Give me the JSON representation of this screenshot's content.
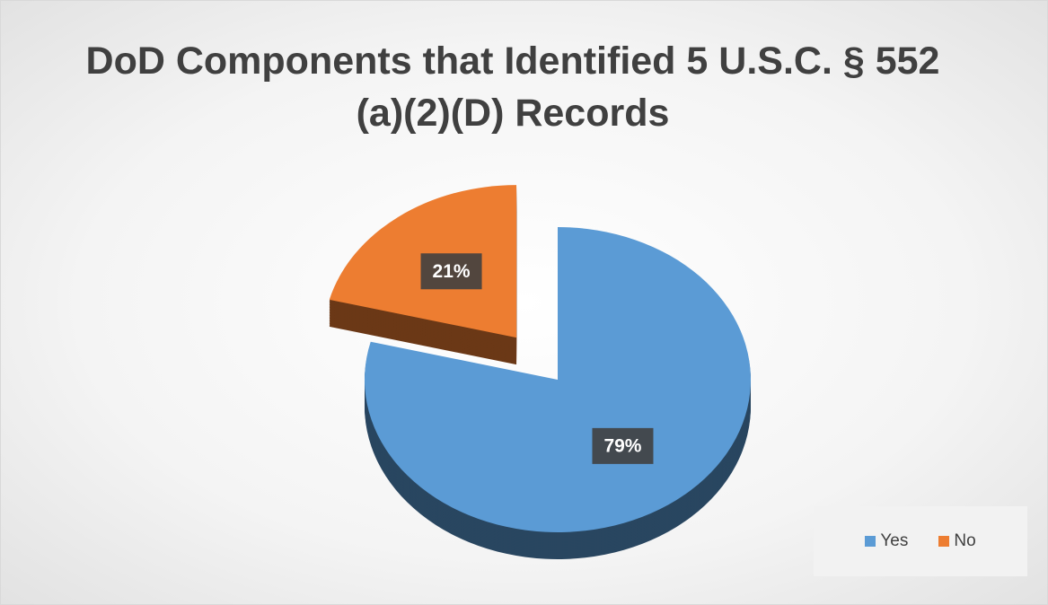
{
  "chart_data": {
    "type": "pie",
    "title": "DoD Components that Identified 5 U.S.C. § 552 (a)(2)(D) Records",
    "categories": [
      "Yes",
      "No"
    ],
    "values": [
      79,
      21
    ],
    "value_labels": [
      "79%",
      "21%"
    ],
    "colors": [
      "#5b9bd5",
      "#ed7d31"
    ],
    "legend": "bottom-right"
  }
}
